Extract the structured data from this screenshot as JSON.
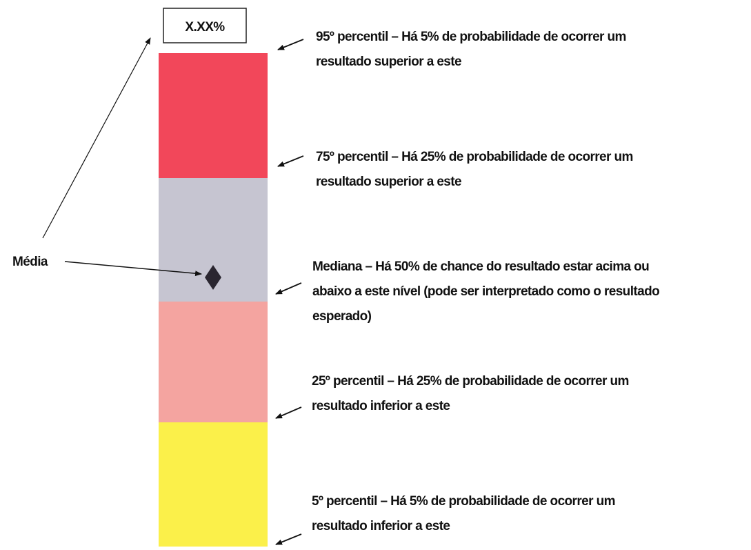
{
  "box_label": "X.XX%",
  "media_label": "Média",
  "annotations": [
    {
      "lines": [
        "95º percentil – Há 5% de probabilidade de ocorrer um",
        "resultado superior a este"
      ]
    },
    {
      "lines": [
        "75º percentil – Há 25% de probabilidade de ocorrer um",
        "resultado superior a este"
      ]
    },
    {
      "lines": [
        "Mediana – Há 50% de chance do resultado estar acima ou",
        "abaixo a este nível (pode ser interpretado como o resultado",
        "esperado)"
      ]
    },
    {
      "lines": [
        "25º percentil – Há 25% de probabilidade de ocorrer um",
        "resultado inferior a este"
      ]
    },
    {
      "lines": [
        "5º percentil – Há 5% de probabilidade de ocorrer um",
        "resultado inferior a este"
      ]
    }
  ]
}
